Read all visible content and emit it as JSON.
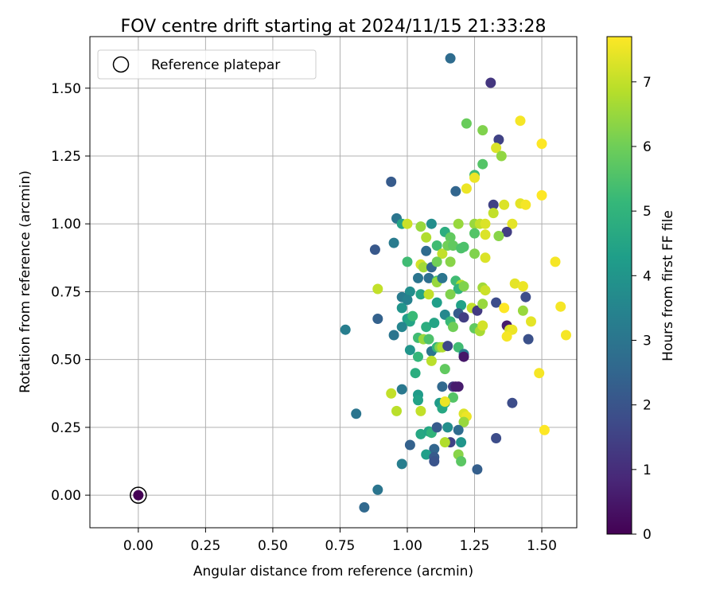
{
  "chart_data": {
    "type": "scatter",
    "title": "FOV centre drift starting at 2024/11/15 21:33:28",
    "xlabel": "Angular distance from reference (arcmin)",
    "ylabel": "Rotation from reference (arcmin)",
    "xlim": [
      -0.18,
      1.63
    ],
    "ylim": [
      -0.12,
      1.69
    ],
    "x_ticks": [
      0.0,
      0.25,
      0.5,
      0.75,
      1.0,
      1.25,
      1.5
    ],
    "x_tick_labels": [
      "0.00",
      "0.25",
      "0.50",
      "0.75",
      "1.00",
      "1.25",
      "1.50"
    ],
    "y_ticks": [
      0.0,
      0.25,
      0.5,
      0.75,
      1.0,
      1.25,
      1.5
    ],
    "y_tick_labels": [
      "0.00",
      "0.25",
      "0.50",
      "0.75",
      "1.00",
      "1.25",
      "1.50"
    ],
    "grid": true,
    "legend": {
      "position": "top-left",
      "entries": [
        "Reference platepar"
      ]
    },
    "colorbar": {
      "label": "Hours from first FF file",
      "range": [
        0,
        7.7
      ],
      "ticks": [
        0,
        1,
        2,
        3,
        4,
        5,
        6,
        7
      ],
      "colormap": "viridis",
      "stops": [
        "#440154",
        "#482878",
        "#3e4a89",
        "#31688e",
        "#26828e",
        "#1f9e89",
        "#35b779",
        "#6ece58",
        "#b5de2b",
        "#fde725"
      ]
    },
    "reference_point": {
      "x": 0.0,
      "y": 0.0,
      "value": 0.0
    },
    "points": [
      [
        1.16,
        1.61,
        2.7
      ],
      [
        1.31,
        1.52,
        1.2
      ],
      [
        1.34,
        1.31,
        1.5
      ],
      [
        1.22,
        1.37,
        5.9
      ],
      [
        1.28,
        1.345,
        6.2
      ],
      [
        1.42,
        1.38,
        7.6
      ],
      [
        1.5,
        1.295,
        7.7
      ],
      [
        1.33,
        1.28,
        7.3
      ],
      [
        1.35,
        1.25,
        6.4
      ],
      [
        1.28,
        1.22,
        5.6
      ],
      [
        1.25,
        1.18,
        5.3
      ],
      [
        0.94,
        1.155,
        2.2
      ],
      [
        1.22,
        1.13,
        7.5
      ],
      [
        1.25,
        1.17,
        7.5
      ],
      [
        1.18,
        1.12,
        2.5
      ],
      [
        1.32,
        1.07,
        1.5
      ],
      [
        1.36,
        1.07,
        7.3
      ],
      [
        1.42,
        1.075,
        7.4
      ],
      [
        1.44,
        1.07,
        7.6
      ],
      [
        1.5,
        1.105,
        7.7
      ],
      [
        0.96,
        1.02,
        3.0
      ],
      [
        0.98,
        1.0,
        4.5
      ],
      [
        1.0,
        1.0,
        7.1
      ],
      [
        1.05,
        0.99,
        6.5
      ],
      [
        1.09,
        1.0,
        3.8
      ],
      [
        1.14,
        0.97,
        4.8
      ],
      [
        1.16,
        0.95,
        5.8
      ],
      [
        1.19,
        1.0,
        6.5
      ],
      [
        1.25,
        1.0,
        6.5
      ],
      [
        1.27,
        1.0,
        7.0
      ],
      [
        1.29,
        1.0,
        7.3
      ],
      [
        1.25,
        0.965,
        5.6
      ],
      [
        1.29,
        0.96,
        7.3
      ],
      [
        1.32,
        1.04,
        7.0
      ],
      [
        1.39,
        1.0,
        7.4
      ],
      [
        1.37,
        0.97,
        1.4
      ],
      [
        1.34,
        0.955,
        6.3
      ],
      [
        0.88,
        0.905,
        2.1
      ],
      [
        0.95,
        0.93,
        3.2
      ],
      [
        1.07,
        0.9,
        2.7
      ],
      [
        1.07,
        0.95,
        6.8
      ],
      [
        1.11,
        0.92,
        5.3
      ],
      [
        1.13,
        0.89,
        7.0
      ],
      [
        1.15,
        0.92,
        6.0
      ],
      [
        1.17,
        0.92,
        5.8
      ],
      [
        1.2,
        0.91,
        5.5
      ],
      [
        1.21,
        0.915,
        5.5
      ],
      [
        1.25,
        0.89,
        6.2
      ],
      [
        1.29,
        0.875,
        7.3
      ],
      [
        1.0,
        0.86,
        5.3
      ],
      [
        1.05,
        0.85,
        7.2
      ],
      [
        1.06,
        0.84,
        6.6
      ],
      [
        1.09,
        0.84,
        2.5
      ],
      [
        1.11,
        0.86,
        6.0
      ],
      [
        1.16,
        0.86,
        6.3
      ],
      [
        0.89,
        0.76,
        7.0
      ],
      [
        1.01,
        0.75,
        3.8
      ],
      [
        1.04,
        0.8,
        3.0
      ],
      [
        1.08,
        0.8,
        2.8
      ],
      [
        1.11,
        0.79,
        5.4
      ],
      [
        1.11,
        0.785,
        6.5
      ],
      [
        1.13,
        0.8,
        3.0
      ],
      [
        1.18,
        0.79,
        5.3
      ],
      [
        1.2,
        0.775,
        6.8
      ],
      [
        1.19,
        0.76,
        5.0
      ],
      [
        1.21,
        0.77,
        6.2
      ],
      [
        1.28,
        0.765,
        6.6
      ],
      [
        1.29,
        0.755,
        7.1
      ],
      [
        1.4,
        0.78,
        7.4
      ],
      [
        1.43,
        0.77,
        7.5
      ],
      [
        1.44,
        0.73,
        1.8
      ],
      [
        0.98,
        0.73,
        3.2
      ],
      [
        1.0,
        0.72,
        3.4
      ],
      [
        1.05,
        0.74,
        4.5
      ],
      [
        1.08,
        0.74,
        7.0
      ],
      [
        1.11,
        0.71,
        4.3
      ],
      [
        1.16,
        0.74,
        6.2
      ],
      [
        1.2,
        0.7,
        4.4
      ],
      [
        1.24,
        0.69,
        7.0
      ],
      [
        1.26,
        0.68,
        1.3
      ],
      [
        1.28,
        0.705,
        6.5
      ],
      [
        1.33,
        0.71,
        1.8
      ],
      [
        1.36,
        0.69,
        7.7
      ],
      [
        1.43,
        0.68,
        6.5
      ],
      [
        0.77,
        0.61,
        3.3
      ],
      [
        0.89,
        0.65,
        2.4
      ],
      [
        0.98,
        0.69,
        4.0
      ],
      [
        1.0,
        0.65,
        4.3
      ],
      [
        1.01,
        0.64,
        4.5
      ],
      [
        1.02,
        0.66,
        5.2
      ],
      [
        0.95,
        0.59,
        3.0
      ],
      [
        0.98,
        0.62,
        3.5
      ],
      [
        1.04,
        0.58,
        5.3
      ],
      [
        1.06,
        0.575,
        6.5
      ],
      [
        1.07,
        0.62,
        4.8
      ],
      [
        1.08,
        0.575,
        5.5
      ],
      [
        1.1,
        0.635,
        4.5
      ],
      [
        1.14,
        0.665,
        3.6
      ],
      [
        1.16,
        0.64,
        5.2
      ],
      [
        1.17,
        0.62,
        6.0
      ],
      [
        1.19,
        0.67,
        2.2
      ],
      [
        1.21,
        0.655,
        1.4
      ],
      [
        1.25,
        0.615,
        5.8
      ],
      [
        1.27,
        0.605,
        6.7
      ],
      [
        1.28,
        0.625,
        7.2
      ],
      [
        1.37,
        0.625,
        0.6
      ],
      [
        1.38,
        0.61,
        7.3
      ],
      [
        1.39,
        0.61,
        7.5
      ],
      [
        1.37,
        0.585,
        7.6
      ],
      [
        1.45,
        0.575,
        1.9
      ],
      [
        1.46,
        0.64,
        7.4
      ],
      [
        1.55,
        0.86,
        7.6
      ],
      [
        1.57,
        0.695,
        7.6
      ],
      [
        1.59,
        0.59,
        7.6
      ],
      [
        1.01,
        0.535,
        4.0
      ],
      [
        1.04,
        0.51,
        5.1
      ],
      [
        1.09,
        0.53,
        3.0
      ],
      [
        1.11,
        0.545,
        5.0
      ],
      [
        1.12,
        0.545,
        6.2
      ],
      [
        1.13,
        0.545,
        6.8
      ],
      [
        1.15,
        0.55,
        1.6
      ],
      [
        1.19,
        0.545,
        5.3
      ],
      [
        1.21,
        0.52,
        3.2
      ],
      [
        1.21,
        0.51,
        0.5
      ],
      [
        1.09,
        0.495,
        6.9
      ],
      [
        1.03,
        0.45,
        4.8
      ],
      [
        1.14,
        0.465,
        5.8
      ],
      [
        1.13,
        0.4,
        2.6
      ],
      [
        1.17,
        0.4,
        1.3
      ],
      [
        1.18,
        0.4,
        0.6
      ],
      [
        0.94,
        0.375,
        7.0
      ],
      [
        0.98,
        0.39,
        3.1
      ],
      [
        1.04,
        0.37,
        4.2
      ],
      [
        1.04,
        0.35,
        4.4
      ],
      [
        1.12,
        0.34,
        4.2
      ],
      [
        1.13,
        0.32,
        4.6
      ],
      [
        1.14,
        0.34,
        4.8
      ],
      [
        1.17,
        0.36,
        5.6
      ],
      [
        1.19,
        0.4,
        0.6
      ],
      [
        0.81,
        0.3,
        3.0
      ],
      [
        0.96,
        0.31,
        6.9
      ],
      [
        1.05,
        0.31,
        7.0
      ],
      [
        1.14,
        0.345,
        7.5
      ],
      [
        1.21,
        0.3,
        7.3
      ],
      [
        1.22,
        0.29,
        7.5
      ],
      [
        1.21,
        0.27,
        6.5
      ],
      [
        1.39,
        0.34,
        1.8
      ],
      [
        1.51,
        0.24,
        7.7
      ],
      [
        1.49,
        0.45,
        7.6
      ],
      [
        1.33,
        0.21,
        1.8
      ],
      [
        1.01,
        0.185,
        2.4
      ],
      [
        1.05,
        0.225,
        4.6
      ],
      [
        1.08,
        0.235,
        4.5
      ],
      [
        1.09,
        0.23,
        5.0
      ],
      [
        1.11,
        0.25,
        2.2
      ],
      [
        1.15,
        0.25,
        3.8
      ],
      [
        1.16,
        0.195,
        1.5
      ],
      [
        1.19,
        0.24,
        2.7
      ],
      [
        1.2,
        0.195,
        4.0
      ],
      [
        1.14,
        0.195,
        6.8
      ],
      [
        1.1,
        0.17,
        2.5
      ],
      [
        1.07,
        0.15,
        4.3
      ],
      [
        1.1,
        0.14,
        2.2
      ],
      [
        1.1,
        0.125,
        2.0
      ],
      [
        1.19,
        0.15,
        6.3
      ],
      [
        1.2,
        0.125,
        5.7
      ],
      [
        0.98,
        0.115,
        3.3
      ],
      [
        1.26,
        0.095,
        2.3
      ],
      [
        0.89,
        0.02,
        3.0
      ],
      [
        0.84,
        -0.045,
        2.6
      ]
    ]
  }
}
